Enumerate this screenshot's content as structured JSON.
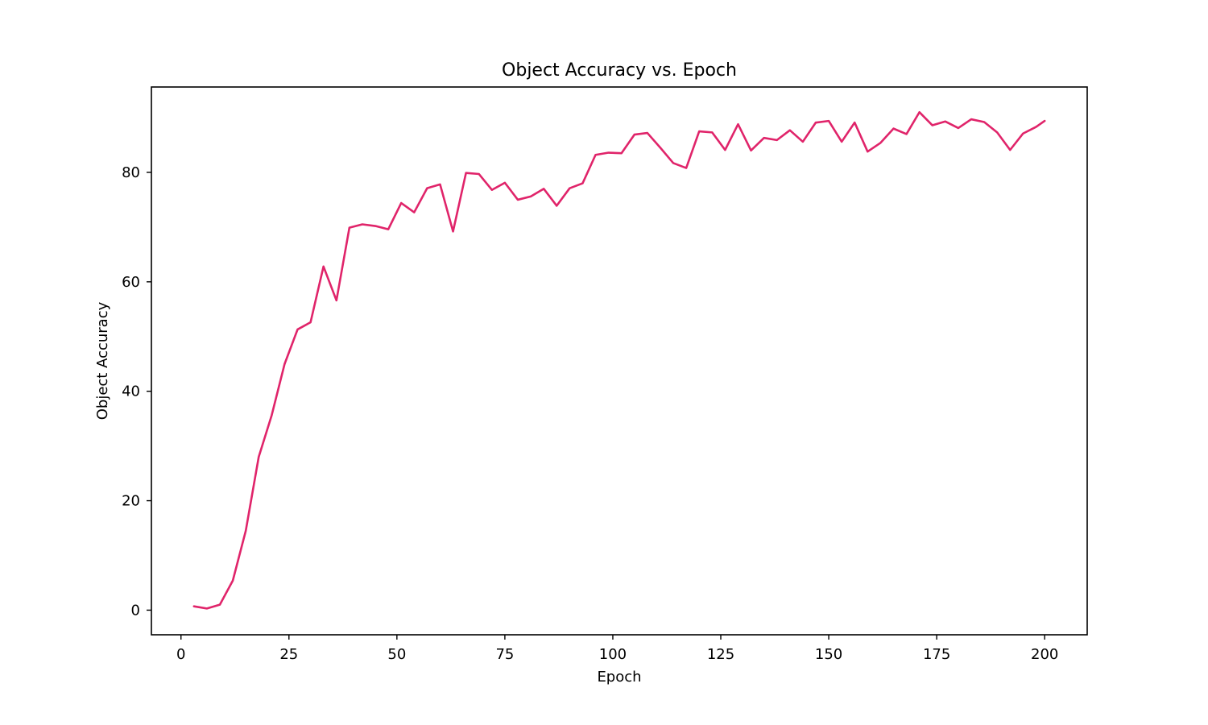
{
  "chart_data": {
    "type": "line",
    "title": "Object Accuracy vs. Epoch",
    "xlabel": "Epoch",
    "ylabel": "Object Accuracy",
    "xlim": [
      -6.85,
      209.85
    ],
    "ylim": [
      -4.5,
      95.6
    ],
    "xticks": [
      0,
      25,
      50,
      75,
      100,
      125,
      150,
      175,
      200
    ],
    "yticks": [
      0,
      20,
      40,
      60,
      80
    ],
    "grid": false,
    "legend": "none",
    "color": "#e0246a",
    "series": [
      {
        "x": [
          3,
          6,
          9,
          12,
          15,
          18,
          21,
          24,
          27,
          30,
          33,
          36,
          39,
          42,
          45,
          48,
          51,
          54,
          57,
          60,
          63,
          66,
          69,
          72,
          75,
          78,
          81,
          84,
          87,
          90,
          93,
          96,
          99,
          102,
          105,
          108,
          111,
          114,
          117,
          120,
          123,
          126,
          129,
          132,
          135,
          138,
          141,
          144,
          147,
          150,
          153,
          156,
          159,
          162,
          165,
          168,
          171,
          174,
          177,
          180,
          183,
          186,
          189,
          192,
          195,
          198,
          200
        ],
        "y": [
          0.7,
          0.3,
          1.0,
          5.4,
          14.5,
          28.0,
          35.6,
          45.0,
          51.3,
          52.6,
          62.8,
          56.6,
          69.9,
          70.5,
          70.2,
          69.6,
          74.4,
          72.7,
          77.1,
          77.8,
          69.2,
          79.9,
          79.7,
          76.8,
          78.1,
          75.0,
          75.6,
          77.0,
          73.9,
          77.1,
          78.0,
          83.2,
          83.6,
          83.5,
          86.9,
          87.2,
          84.5,
          81.7,
          80.8,
          87.5,
          87.3,
          84.1,
          88.8,
          84.0,
          86.3,
          85.9,
          87.7,
          85.6,
          89.1,
          89.4,
          85.6,
          89.1,
          83.8,
          85.4,
          88.0,
          87.0,
          91.0,
          88.6,
          89.3,
          88.1,
          89.7,
          89.2,
          87.3,
          84.1,
          87.1,
          88.3,
          89.4
        ]
      }
    ]
  }
}
